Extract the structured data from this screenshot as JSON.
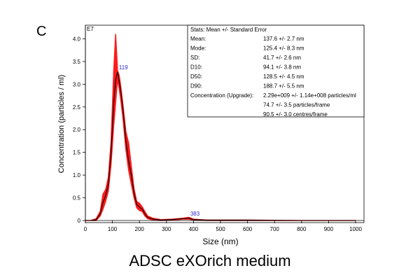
{
  "panel_label": "C",
  "caption": "ADSC eXOrich medium",
  "colors": {
    "band": "#ff1a1a",
    "mean_line": "#000000",
    "peak_label": "#2a2acc"
  },
  "chart_data": {
    "type": "line",
    "title": "",
    "xlabel": "Size (nm)",
    "ylabel": "Concentration (particles / ml)",
    "y_exponent_label": "E7",
    "xlim": [
      0,
      1000
    ],
    "ylim": [
      0,
      4.3
    ],
    "x_ticks": [
      0,
      100,
      200,
      300,
      400,
      500,
      600,
      700,
      800,
      900,
      1000
    ],
    "y_ticks": [
      0,
      0.5,
      1.0,
      1.5,
      2.0,
      2.5,
      3.0,
      3.5,
      4.0
    ],
    "y_tick_labels": [
      "0",
      "0.5",
      "1.0",
      "1.5",
      "2.0",
      "2.5",
      "3.0",
      "3.5",
      "4.0"
    ],
    "series": [
      {
        "name": "mean",
        "x": [
          0,
          20,
          40,
          55,
          65,
          75,
          85,
          95,
          105,
          112,
          119,
          125,
          132,
          140,
          150,
          160,
          170,
          180,
          190,
          200,
          210,
          220,
          230,
          250,
          280,
          320,
          360,
          383,
          400,
          450,
          600,
          800,
          1000
        ],
        "y": [
          0,
          0,
          0.02,
          0.15,
          0.4,
          0.55,
          0.8,
          1.5,
          2.6,
          3.1,
          3.27,
          3.05,
          2.8,
          2.4,
          1.75,
          1.3,
          1.0,
          0.6,
          0.35,
          0.3,
          0.25,
          0.15,
          0.07,
          0.03,
          0.01,
          0.02,
          0.04,
          0.05,
          0.02,
          0.01,
          0.01,
          0.0,
          0.0
        ]
      },
      {
        "name": "error-upper",
        "x": [
          0,
          20,
          40,
          55,
          65,
          75,
          85,
          95,
          105,
          112,
          119,
          125,
          132,
          140,
          150,
          160,
          170,
          180,
          190,
          200,
          210,
          220,
          230,
          250,
          280,
          320,
          360,
          383,
          400,
          450,
          600,
          800,
          1000
        ],
        "y": [
          0,
          0,
          0.04,
          0.2,
          0.58,
          0.68,
          0.95,
          1.75,
          3.3,
          4.1,
          3.3,
          3.2,
          2.9,
          2.5,
          1.95,
          1.7,
          1.2,
          0.7,
          0.42,
          0.38,
          0.3,
          0.2,
          0.1,
          0.05,
          0.02,
          0.03,
          0.05,
          0.07,
          0.03,
          0.01,
          0.01,
          0.0,
          0.0
        ]
      },
      {
        "name": "error-lower",
        "x": [
          0,
          20,
          40,
          55,
          65,
          75,
          85,
          95,
          105,
          112,
          119,
          125,
          132,
          140,
          150,
          160,
          170,
          180,
          190,
          200,
          210,
          220,
          230,
          250,
          280,
          320,
          360,
          383,
          400,
          450,
          600,
          800,
          1000
        ],
        "y": [
          0,
          0,
          0.0,
          0.1,
          0.25,
          0.42,
          0.65,
          1.25,
          2.1,
          2.6,
          3.1,
          2.9,
          2.6,
          2.2,
          1.55,
          1.1,
          0.8,
          0.5,
          0.28,
          0.22,
          0.2,
          0.1,
          0.04,
          0.01,
          0.0,
          0.01,
          0.03,
          0.03,
          0.01,
          0.0,
          0.0,
          0.0,
          0.0
        ]
      }
    ],
    "annotations": [
      {
        "x": 119,
        "y": 3.27,
        "text": "119"
      },
      {
        "x": 383,
        "y": 0.05,
        "text": "383"
      }
    ],
    "stats_box": {
      "header": "Stats: Mean +/- Standard Error",
      "rows": [
        {
          "label": "Mean:",
          "value": "137.6 +/- 2.7 nm"
        },
        {
          "label": "Mode:",
          "value": "125.4 +/- 8.3 nm"
        },
        {
          "label": "SD:",
          "value": "41.7 +/- 2.6 nm"
        },
        {
          "label": "D10:",
          "value": "94.1 +/- 3.8 nm"
        },
        {
          "label": "D50:",
          "value": "128.5 +/- 4.5 nm"
        },
        {
          "label": "D90:",
          "value": "188.7 +/- 5.5 nm"
        },
        {
          "label": "Concentration (Upgrade):",
          "value": "2.29e+009 +/- 1.14e+008 particles/ml"
        },
        {
          "label": "",
          "value": "74.7 +/- 3.5 particles/frame"
        },
        {
          "label": "",
          "value": "90.5 +/- 3.0 centres/frame"
        }
      ]
    }
  }
}
